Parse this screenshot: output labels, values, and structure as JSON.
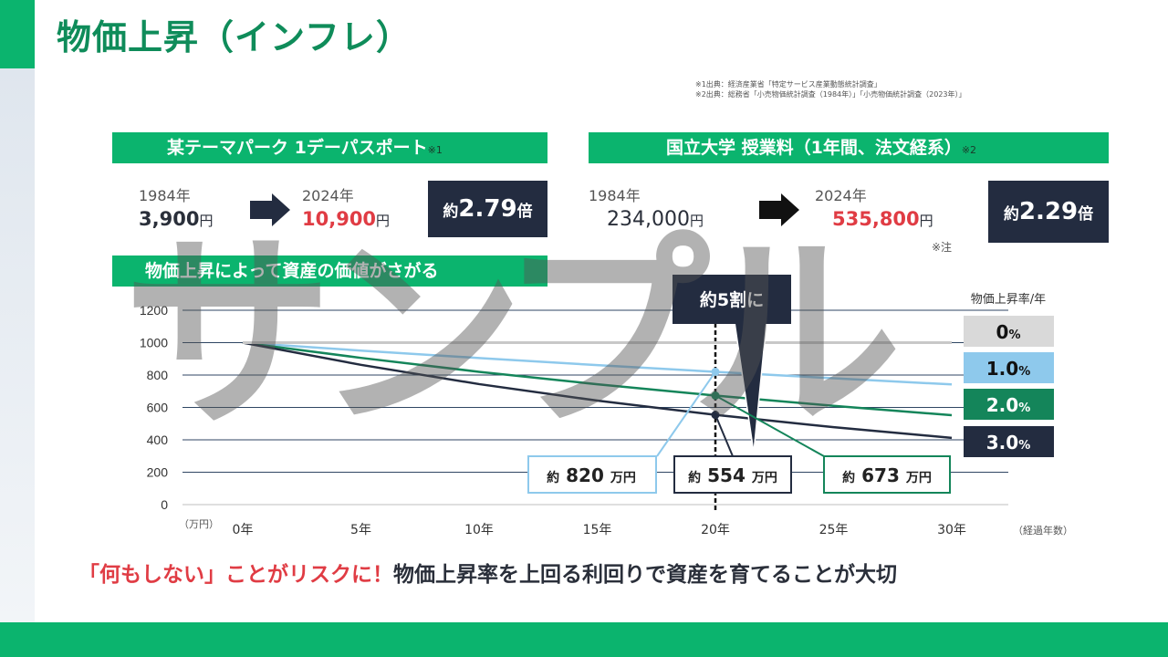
{
  "title": "物価上昇（インフレ）",
  "sources": [
    "※1出典：経済産業省「特定サービス産業動態統計調査」",
    "※2出典：総務省「小売物価統計調査（1984年）」「小売物価統計調査（2023年）」"
  ],
  "panel_left": {
    "header": "某テーマパーク 1デーパスポート",
    "header_note": "※1",
    "from_year": "1984年",
    "from_price": "3,900",
    "to_year": "2024年",
    "to_price": "10,900",
    "unit": "円",
    "ratio_prefix": "約",
    "ratio_value": "2.79",
    "ratio_suffix": "倍"
  },
  "panel_right": {
    "header": "国立大学 授業料（1年間、法文経系）",
    "header_note": "※2",
    "from_year": "1984年",
    "from_price": "234,000",
    "to_year": "2024年",
    "to_price": "535,800",
    "unit": "円",
    "note": "※注",
    "ratio_prefix": "約",
    "ratio_value": "2.29",
    "ratio_suffix": "倍"
  },
  "chart_header": "物価上昇によって資産の価値がさがる",
  "watermark": "サンプル",
  "tagline_red": "「何もしない」ことがリスクに！",
  "tagline_rest": "物価上昇率を上回る利回りで資産を育てることが大切",
  "colors": {
    "green": "#0bb46e",
    "navy": "#232c40",
    "red": "#e03c44",
    "light_blue": "#8ec9ec",
    "dark_green": "#14855a",
    "gray": "#c8c8c8"
  },
  "chart_data": {
    "type": "line",
    "x": [
      0,
      5,
      10,
      15,
      20,
      25,
      30
    ],
    "x_tick_labels": [
      "0年",
      "5年",
      "10年",
      "15年",
      "20年",
      "25年",
      "30年"
    ],
    "xlabel": "（経過年数）",
    "ylabel": "（万円）",
    "y_ticks": [
      "0",
      "200",
      "400",
      "600",
      "800",
      "1000",
      "1200"
    ],
    "ylim": [
      0,
      1200
    ],
    "legend_title": "物価上昇率/年",
    "series": [
      {
        "name": "0",
        "unit": "%",
        "color": "#c8c8c8",
        "values": [
          1000,
          1000,
          1000,
          1000,
          1000,
          1000,
          1000
        ]
      },
      {
        "name": "1.0",
        "unit": "%",
        "color": "#8ec9ec",
        "values": [
          1000,
          951,
          905,
          861,
          820,
          780,
          742
        ]
      },
      {
        "name": "2.0",
        "unit": "%",
        "color": "#14855a",
        "values": [
          1000,
          906,
          820,
          743,
          673,
          610,
          552
        ]
      },
      {
        "name": "3.0",
        "unit": "%",
        "color": "#232c40",
        "values": [
          1000,
          863,
          744,
          642,
          554,
          478,
          412
        ]
      }
    ],
    "callout_main": "約5割に",
    "annotations": [
      {
        "prefix": "約",
        "value": "820",
        "unit": "万円",
        "x": 20,
        "y": 820,
        "color": "#8ec9ec"
      },
      {
        "prefix": "約",
        "value": "554",
        "unit": "万円",
        "x": 20,
        "y": 554,
        "color": "#232c40"
      },
      {
        "prefix": "約",
        "value": "673",
        "unit": "万円",
        "x": 20,
        "y": 673,
        "color": "#14855a"
      }
    ]
  }
}
